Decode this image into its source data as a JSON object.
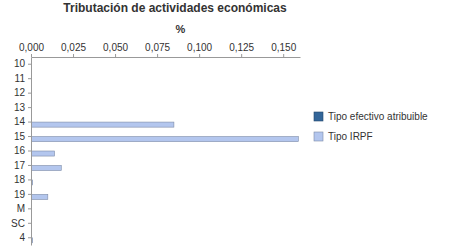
{
  "chart_data": {
    "type": "bar",
    "orientation": "horizontal",
    "title": "Tributación de actividades económicas",
    "xlabel": "%",
    "categories": [
      "10",
      "11",
      "12",
      "13",
      "14",
      "15",
      "16",
      "17",
      "18",
      "19",
      "M",
      "SC",
      "4"
    ],
    "series": [
      {
        "name": "Tipo efectivo atribuible",
        "color": "#336699",
        "values": [
          0,
          0,
          0,
          0,
          0,
          0,
          0,
          0,
          0,
          0,
          0,
          0,
          0
        ]
      },
      {
        "name": "Tipo IRPF",
        "color": "#b3c6ee",
        "values": [
          0,
          0,
          0,
          0,
          0.085,
          0.159,
          0.014,
          0.018,
          0.001,
          0.01,
          0,
          0,
          0.001
        ]
      }
    ],
    "xlim": [
      0,
      0.16
    ],
    "xticks": [
      {
        "value": 0,
        "label": "0,000"
      },
      {
        "value": 0.025,
        "label": "0,025"
      },
      {
        "value": 0.05,
        "label": "0,050"
      },
      {
        "value": 0.075,
        "label": "0,075"
      },
      {
        "value": 0.1,
        "label": "0,100"
      },
      {
        "value": 0.125,
        "label": "0,125"
      },
      {
        "value": 0.15,
        "label": "0,150"
      }
    ],
    "grid": false,
    "legend": "right"
  }
}
